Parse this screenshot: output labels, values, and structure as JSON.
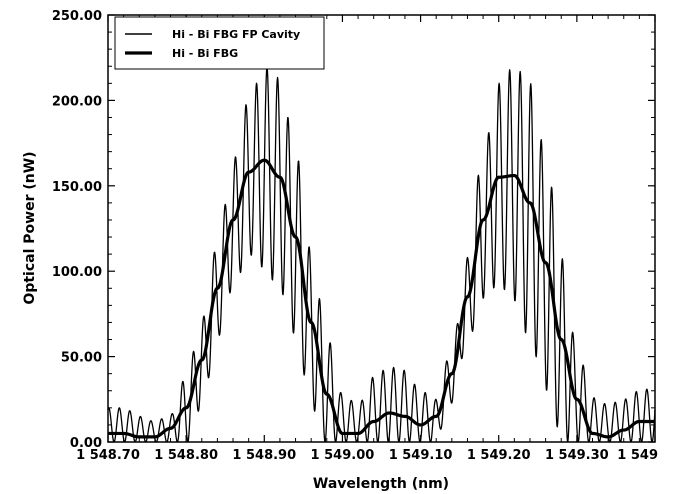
{
  "chart_data": {
    "type": "line",
    "xlabel": "Wavelength (nm)",
    "ylabel": "Optical Power (nW)",
    "xlim": [
      1548.7,
      1549.4
    ],
    "ylim": [
      0,
      250
    ],
    "x_ticks": [
      1548.7,
      1548.8,
      1548.9,
      1549.0,
      1549.1,
      1549.2,
      1549.3,
      1549.4
    ],
    "x_tick_labels": [
      "1 548.70",
      "1 548.80",
      "1 548.90",
      "1 549.00",
      "1 549.10",
      "1 549.20",
      "1 549.30",
      "1 549"
    ],
    "y_ticks": [
      0,
      50,
      100,
      150,
      200,
      250
    ],
    "y_tick_labels": [
      "0.00",
      "50.00",
      "100.00",
      "150.00",
      "200.00",
      "250.00"
    ],
    "grid": false,
    "legend_position": "top-left",
    "series": [
      {
        "name": "Hi - Bi FBG FP Cavity",
        "color": "#000000",
        "line_width": "thin",
        "fringe_period_nm": 0.0135,
        "x": [
          1548.7,
          1548.72,
          1548.74,
          1548.76,
          1548.78,
          1548.8,
          1548.82,
          1548.84,
          1548.86,
          1548.88,
          1548.9,
          1548.92,
          1548.94,
          1548.96,
          1548.98,
          1549.0,
          1549.02,
          1549.04,
          1549.06,
          1549.08,
          1549.1,
          1549.12,
          1549.14,
          1549.16,
          1549.18,
          1549.2,
          1549.22,
          1549.24,
          1549.26,
          1549.28,
          1549.3,
          1549.32,
          1549.34,
          1549.36,
          1549.38,
          1549.4
        ],
        "y": [
          20,
          20,
          15,
          12,
          16,
          38,
          72,
          115,
          165,
          200,
          220,
          213,
          170,
          112,
          62,
          28,
          22,
          38,
          44,
          42,
          30,
          25,
          55,
          108,
          170,
          210,
          220,
          210,
          170,
          108,
          56,
          26,
          22,
          25,
          30,
          32
        ]
      },
      {
        "name": "Hi - Bi FBG",
        "color": "#000000",
        "line_width": "thick",
        "x": [
          1548.7,
          1548.72,
          1548.74,
          1548.76,
          1548.78,
          1548.8,
          1548.82,
          1548.84,
          1548.86,
          1548.88,
          1548.9,
          1548.92,
          1548.94,
          1548.96,
          1548.98,
          1549.0,
          1549.02,
          1549.04,
          1549.06,
          1549.08,
          1549.1,
          1549.12,
          1549.14,
          1549.16,
          1549.18,
          1549.2,
          1549.22,
          1549.24,
          1549.26,
          1549.28,
          1549.3,
          1549.32,
          1549.34,
          1549.36,
          1549.38,
          1549.4
        ],
        "y": [
          5,
          5,
          3,
          3,
          8,
          20,
          48,
          90,
          130,
          158,
          165,
          155,
          120,
          70,
          28,
          5,
          5,
          12,
          17,
          15,
          10,
          15,
          40,
          85,
          130,
          155,
          156,
          140,
          105,
          60,
          25,
          5,
          3,
          7,
          12,
          12
        ]
      }
    ]
  }
}
